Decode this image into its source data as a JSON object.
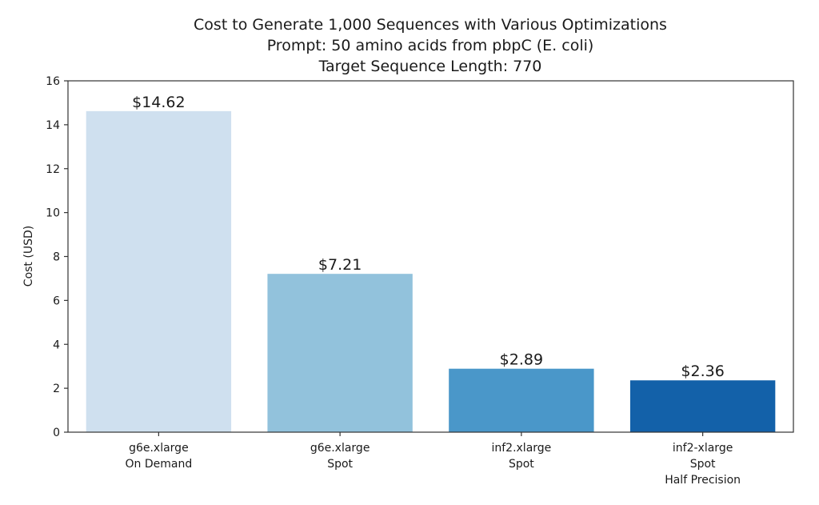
{
  "chart_data": {
    "type": "bar",
    "title": [
      "Cost to Generate 1,000 Sequences with Various Optimizations",
      "Prompt: 50 amino acids from pbpC (E. coli)",
      "Target Sequence Length: 770"
    ],
    "xlabel": "",
    "ylabel": "Cost (USD)",
    "ylim": [
      0,
      16
    ],
    "yticks": [
      0,
      2,
      4,
      6,
      8,
      10,
      12,
      14,
      16
    ],
    "grid": false,
    "categories": [
      [
        "g6e.xlarge",
        "On Demand"
      ],
      [
        "g6e.xlarge",
        "Spot"
      ],
      [
        "inf2.xlarge",
        "Spot"
      ],
      [
        "inf2-xlarge",
        "Spot",
        "Half Precision"
      ]
    ],
    "values": [
      14.62,
      7.21,
      2.89,
      2.36
    ],
    "data_labels": [
      "$14.62",
      "$7.21",
      "$2.89",
      "$2.36"
    ],
    "colors": [
      "#cfe0ef",
      "#92c2dc",
      "#4a97c9",
      "#1361a9"
    ]
  }
}
